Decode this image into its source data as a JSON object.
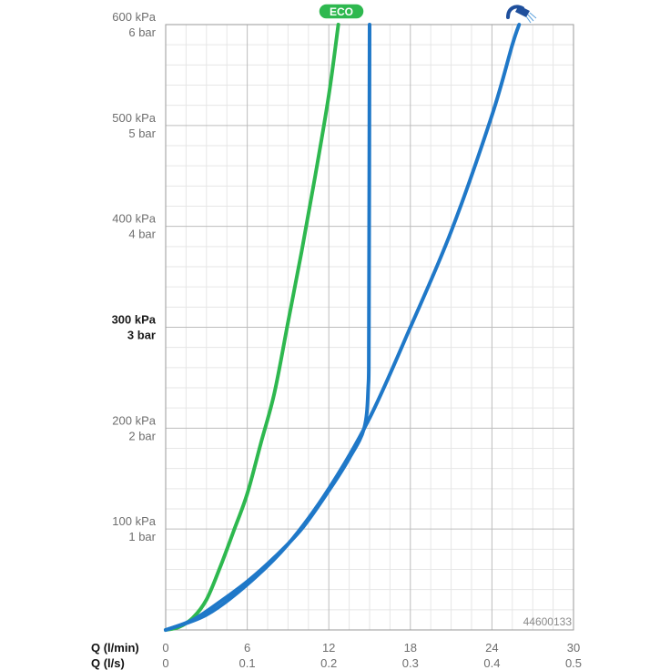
{
  "chart_data": {
    "type": "line",
    "x_axes": [
      {
        "label": "Q (l/min)",
        "ticks": [
          "0",
          "6",
          "12",
          "18",
          "24",
          "30"
        ],
        "range": [
          0,
          30
        ]
      },
      {
        "label": "Q (l/s)",
        "ticks": [
          "0",
          "0.1",
          "0.2",
          "0.3",
          "0.4",
          "0.5"
        ],
        "range": [
          0,
          0.5
        ]
      }
    ],
    "y_axis": {
      "range": [
        0,
        600
      ],
      "unit": "kPa",
      "ticks": [
        {
          "value": 100,
          "kpa": "100 kPa",
          "bar": "1 bar",
          "bold": false
        },
        {
          "value": 200,
          "kpa": "200 kPa",
          "bar": "2 bar",
          "bold": false
        },
        {
          "value": 300,
          "kpa": "300 kPa",
          "bar": "3 bar",
          "bold": true
        },
        {
          "value": 400,
          "kpa": "400 kPa",
          "bar": "4 bar",
          "bold": false
        },
        {
          "value": 500,
          "kpa": "500 kPa",
          "bar": "5 bar",
          "bold": false
        },
        {
          "value": 600,
          "kpa": "600 kPa",
          "bar": "6 bar",
          "bold": false
        }
      ]
    },
    "grid": true,
    "series": [
      {
        "color": "#2eb84f",
        "points": [
          [
            0,
            0
          ],
          [
            1,
            3
          ],
          [
            2,
            12
          ],
          [
            3,
            30
          ],
          [
            4,
            62
          ],
          [
            5,
            98
          ],
          [
            6,
            135
          ],
          [
            7,
            185
          ],
          [
            8,
            235
          ],
          [
            9,
            305
          ],
          [
            10,
            375
          ],
          [
            11,
            450
          ],
          [
            12,
            530
          ],
          [
            12.7,
            600
          ]
        ]
      },
      {
        "color": "#1f78c8",
        "points": [
          [
            0,
            0
          ],
          [
            2,
            10
          ],
          [
            4,
            28
          ],
          [
            6,
            48
          ],
          [
            8,
            72
          ],
          [
            10,
            100
          ],
          [
            12,
            138
          ],
          [
            13.5,
            170
          ],
          [
            14.6,
            200
          ],
          [
            14.9,
            240
          ],
          [
            14.95,
            300
          ],
          [
            15,
            600
          ]
        ]
      },
      {
        "color": "#1f78c8",
        "points": [
          [
            0,
            0
          ],
          [
            3,
            15
          ],
          [
            6,
            45
          ],
          [
            9,
            85
          ],
          [
            12,
            140
          ],
          [
            15,
            210
          ],
          [
            18,
            300
          ],
          [
            21,
            395
          ],
          [
            24,
            510
          ],
          [
            25.5,
            580
          ],
          [
            26,
            600
          ]
        ]
      }
    ],
    "annotations": {
      "eco_badge": "ECO",
      "code": "44600133"
    },
    "colors": {
      "eco": "#2eb84f",
      "flow": "#1f78c8",
      "grid_major": "#bdbdbd",
      "grid_minor": "#e6e6e6"
    },
    "icons": [
      "eco-badge",
      "shower-head-icon"
    ]
  }
}
